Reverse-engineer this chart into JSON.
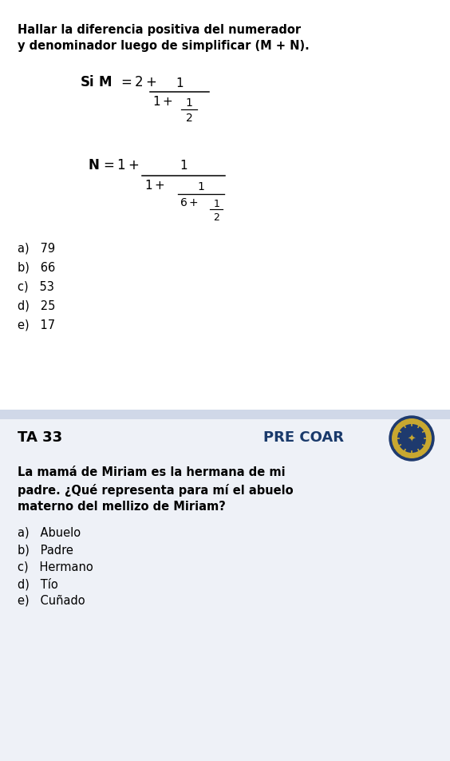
{
  "bg_color": "#ffffff",
  "section1_bg": "#ffffff",
  "section2_bg": "#eef1f7",
  "divider_color": "#d0d8e8",
  "title1_line1": "Hallar la diferencia positiva del numerador",
  "title1_line2": "y denominador luego de simplificar (M + N).",
  "answers1": [
    "a)   79",
    "b)   66",
    "c)   53",
    "d)   25",
    "e)   17"
  ],
  "ta_label": "TA 33",
  "pre_coar_label": "PRE COAR",
  "question2_line1": "La mamá de Miriam es la hermana de mi",
  "question2_line2": "padre. ¿Qué representa para mí el abuelo",
  "question2_line3": "materno del mellizo de Miriam?",
  "answers2": [
    "a)   Abuelo",
    "b)   Padre",
    "c)   Hermano",
    "d)   Tío",
    "e)   Cuñado"
  ],
  "text_color": "#000000",
  "precoar_color": "#1a3a6b",
  "font_size_title": 10.5,
  "font_size_body": 10.5,
  "font_size_answers": 10.5,
  "font_size_ta": 12,
  "font_size_math": 11
}
